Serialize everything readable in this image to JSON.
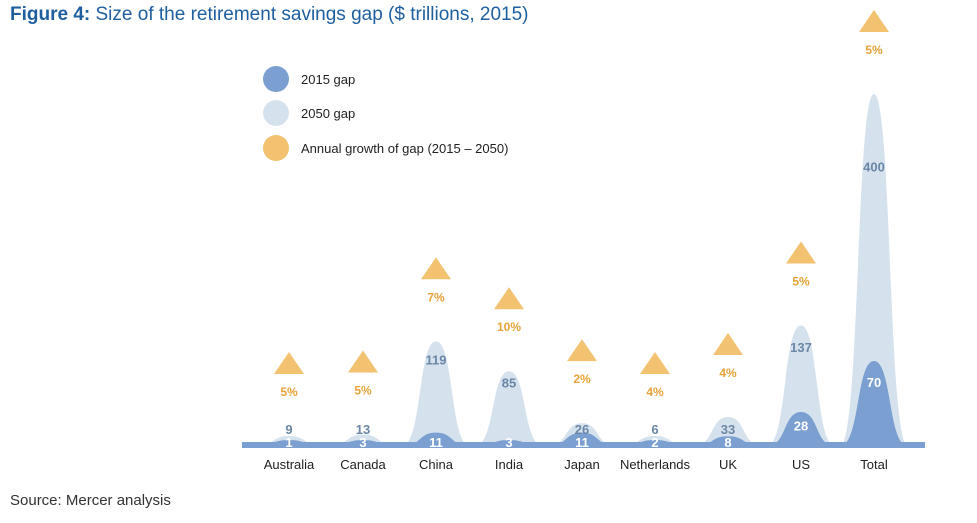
{
  "title_prefix": "Figure 4:",
  "title_text": " Size of the retirement savings gap ($ trillions, 2015)",
  "source": "Source: Mercer analysis",
  "colors": {
    "gap2015": "#7a9fd0",
    "gap2050": "#d5e2ee",
    "growth": "#f3c271",
    "growth_text": "#e8a23a",
    "title": "#1f5fa0",
    "axis": "#7a9fd0",
    "label_dark": "#6b86a6"
  },
  "legend": [
    {
      "label": "2015 gap",
      "color": "#7a9fd0"
    },
    {
      "label": "2050 gap",
      "color": "#d5e2ee"
    },
    {
      "label": "Annual growth of gap (2015 – 2050)",
      "color": "#f3c271"
    }
  ],
  "chart_data": {
    "type": "area",
    "categories": [
      "Australia",
      "Canada",
      "China",
      "India",
      "Japan",
      "Netherlands",
      "UK",
      "US",
      "Total"
    ],
    "series": [
      {
        "name": "2015 gap",
        "values": [
          1,
          3,
          11,
          3,
          11,
          2,
          8,
          28,
          70
        ]
      },
      {
        "name": "2050 gap",
        "values": [
          9,
          13,
          119,
          85,
          26,
          6,
          33,
          137,
          400
        ]
      },
      {
        "name": "Annual growth of gap (2015 – 2050)",
        "values": [
          "5%",
          "5%",
          "7%",
          "10%",
          "2%",
          "4%",
          "4%",
          "5%",
          "5%"
        ]
      }
    ],
    "title": "Size of the retirement savings gap ($ trillions, 2015)"
  }
}
